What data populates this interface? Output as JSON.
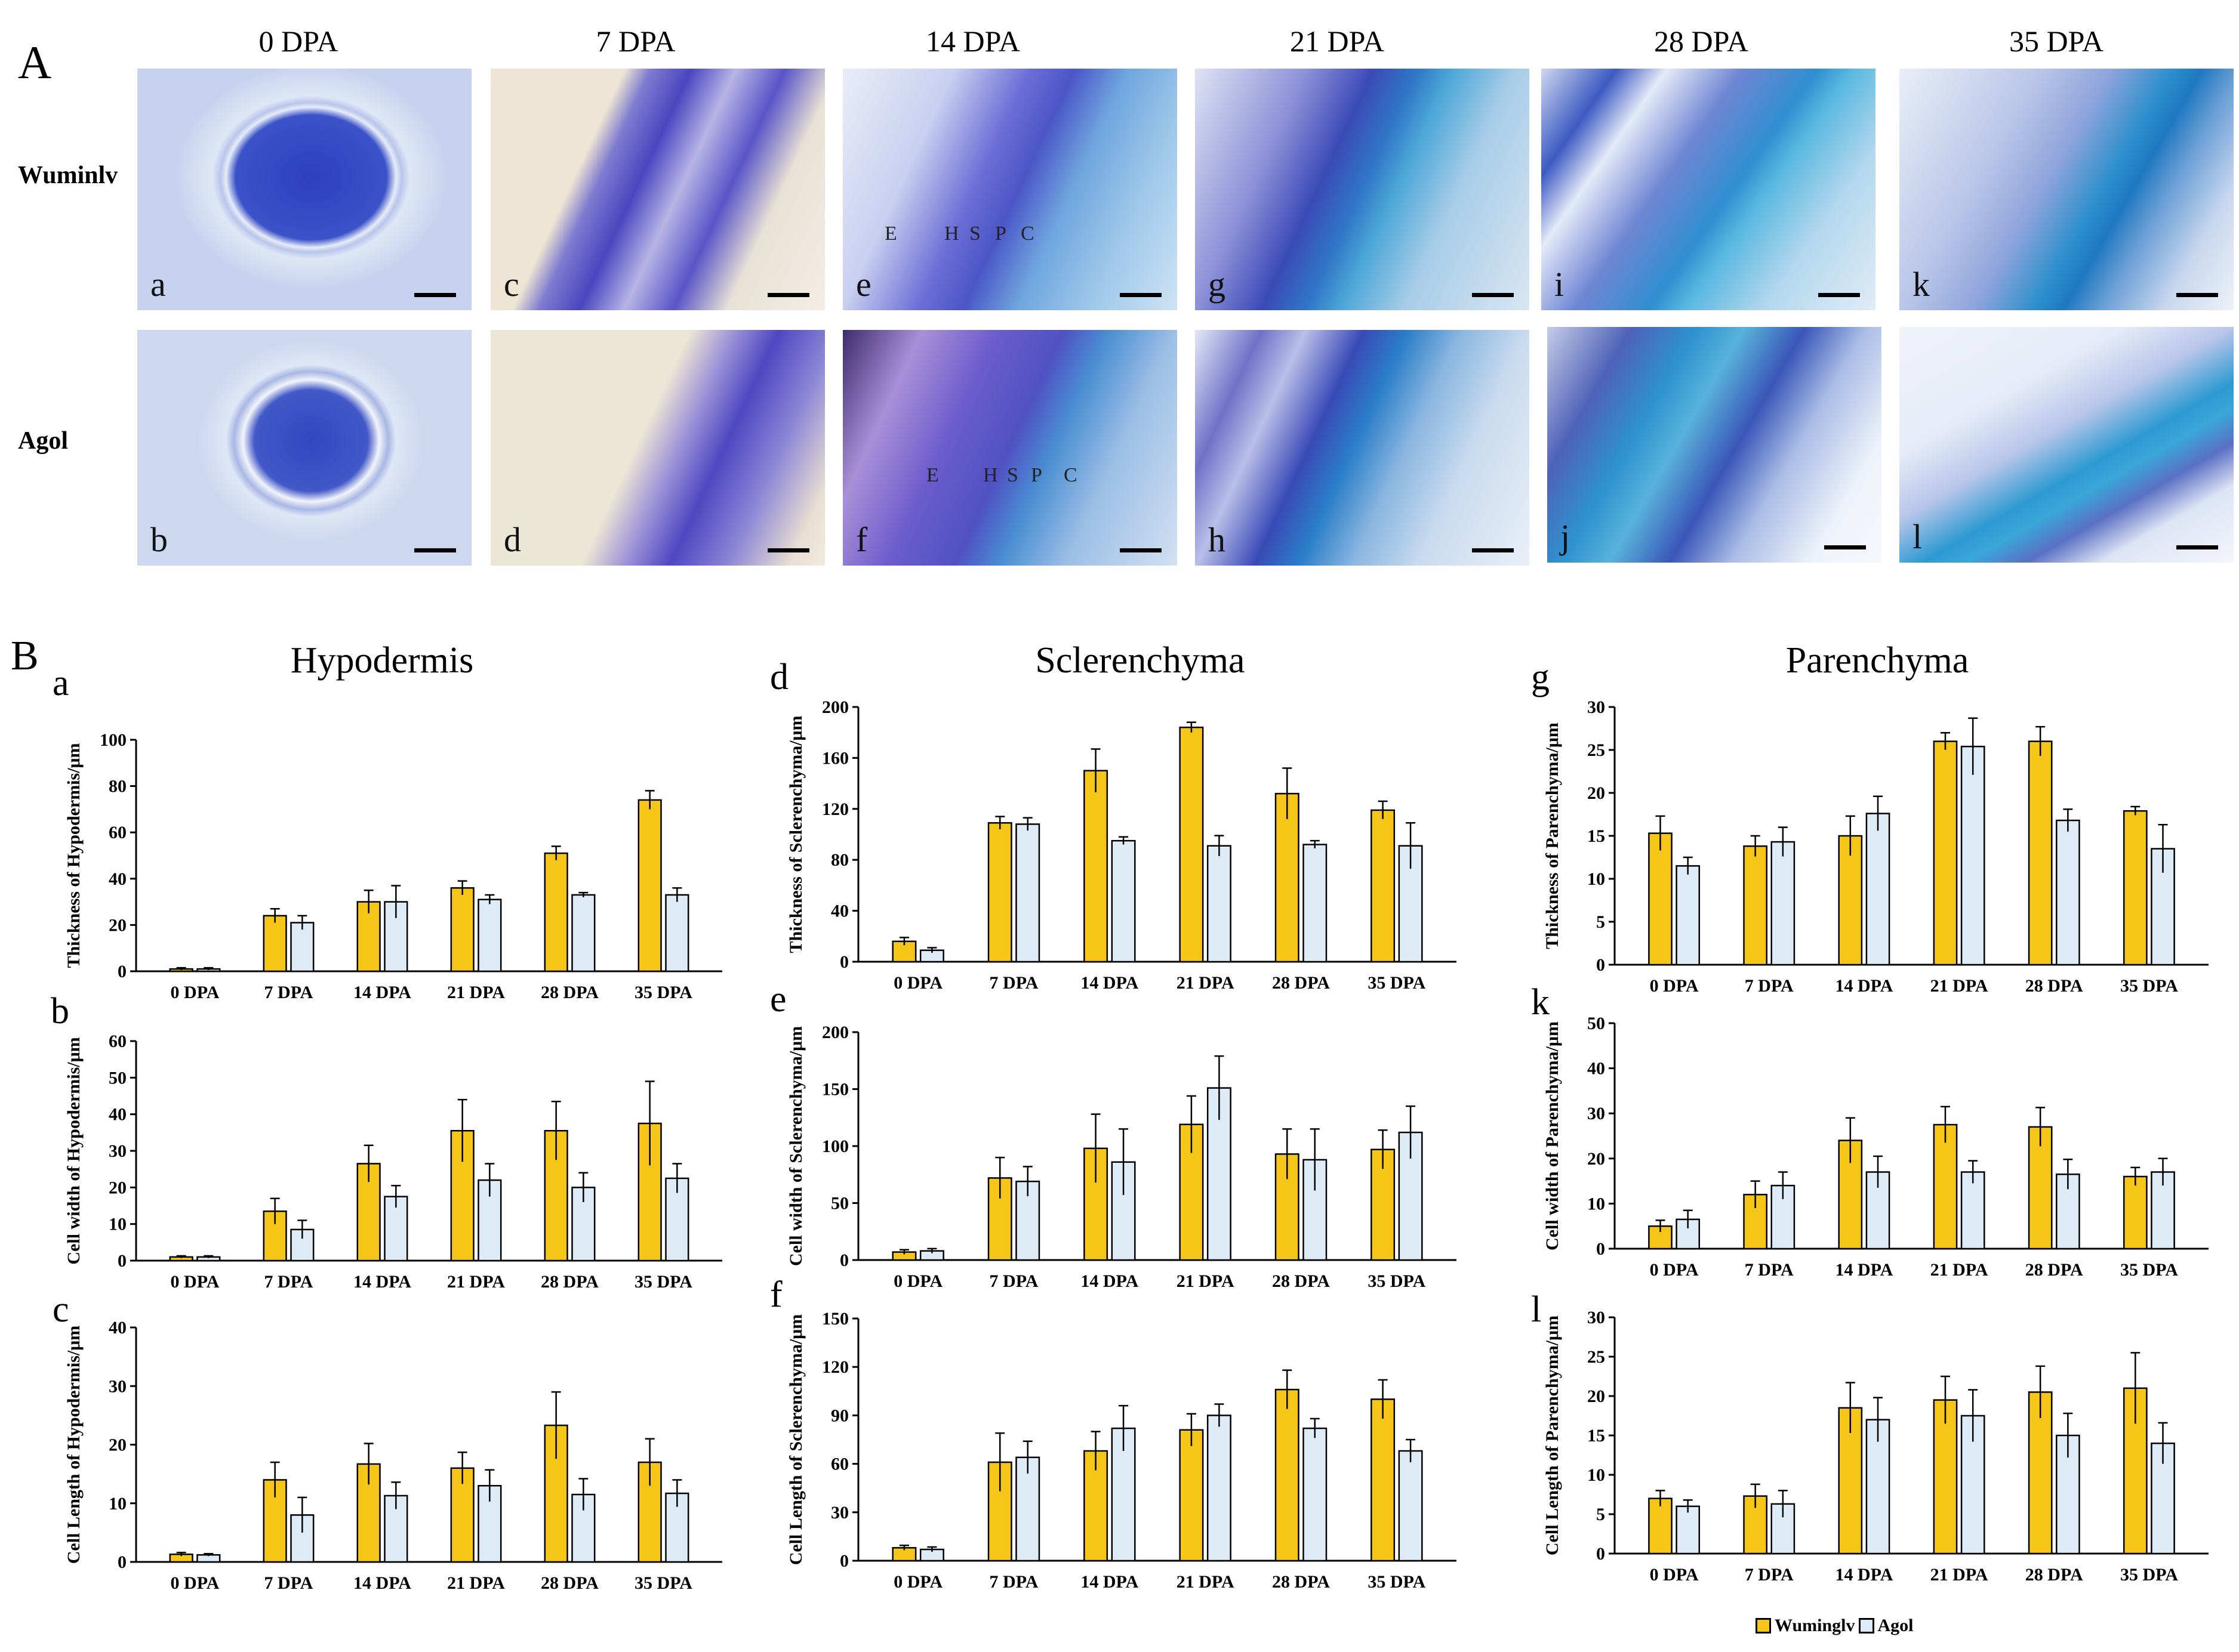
{
  "panel_A": {
    "letter": "A",
    "columns": [
      "0 DPA",
      "7 DPA",
      "14 DPA",
      "21 DPA",
      "28 DPA",
      "35 DPA"
    ],
    "rows": [
      "Wuminlv",
      "Agol"
    ],
    "sublabels": [
      [
        "a",
        "c",
        "e",
        "g",
        "i",
        "k"
      ],
      [
        "b",
        "d",
        "f",
        "h",
        "j",
        "l"
      ]
    ],
    "layer_labels": {
      "e": [
        "E",
        "H",
        "S",
        "P",
        "C"
      ],
      "f": [
        "E",
        "H",
        "S",
        "P",
        "C"
      ]
    }
  },
  "panel_B": {
    "letter": "B",
    "column_titles": [
      "Hypodermis",
      "Sclerenchyma",
      "Parenchyma"
    ]
  },
  "legend": {
    "series": [
      {
        "name": "Wuminglv",
        "color": "#F5C518"
      },
      {
        "name": "Agol",
        "color": "#DDEBF7"
      }
    ]
  },
  "colors": {
    "wuminglv": "#F5C518",
    "agol": "#DDEBF7",
    "stain_dark": "#2436a8",
    "stain_light": "#5fb0d9"
  },
  "chart_data": [
    {
      "id": "a",
      "type": "bar",
      "title": "Hypodermis",
      "ylabel": "Thickness of Hypodermis/μm",
      "ylim": [
        0,
        100
      ],
      "yticks": [
        0,
        20,
        40,
        60,
        80,
        100
      ],
      "categories": [
        "0 DPA",
        "7 DPA",
        "14 DPA",
        "21 DPA",
        "28 DPA",
        "35 DPA"
      ],
      "series": [
        {
          "name": "Wuminglv",
          "values": [
            1,
            24,
            30,
            36,
            51,
            74
          ],
          "errors": [
            0.5,
            3,
            5,
            3,
            3,
            4
          ]
        },
        {
          "name": "Agol",
          "values": [
            1,
            21,
            30,
            31,
            33,
            33
          ],
          "errors": [
            0.5,
            3,
            7,
            2,
            1,
            3
          ]
        }
      ]
    },
    {
      "id": "b",
      "type": "bar",
      "ylabel": "Cell width of Hypodermis/μm",
      "ylim": [
        0,
        60
      ],
      "yticks": [
        0,
        10,
        20,
        30,
        40,
        50,
        60
      ],
      "categories": [
        "0 DPA",
        "7 DPA",
        "14 DPA",
        "21 DPA",
        "28 DPA",
        "35 DPA"
      ],
      "series": [
        {
          "name": "Wuminglv",
          "values": [
            1,
            13.5,
            26.5,
            35.5,
            35.5,
            37.5
          ],
          "errors": [
            0.3,
            3.5,
            5,
            8.5,
            8,
            11.5
          ]
        },
        {
          "name": "Agol",
          "values": [
            1,
            8.5,
            17.5,
            22,
            20,
            22.5
          ],
          "errors": [
            0.3,
            2.5,
            3,
            4.5,
            4,
            4
          ]
        }
      ]
    },
    {
      "id": "c",
      "type": "bar",
      "ylabel": "Cell Length of Hypodermis/μm",
      "ylim": [
        0,
        40
      ],
      "yticks": [
        0,
        10,
        20,
        30,
        40
      ],
      "categories": [
        "0 DPA",
        "7 DPA",
        "14 DPA",
        "21 DPA",
        "28 DPA",
        "35 DPA"
      ],
      "series": [
        {
          "name": "Wuminglv",
          "values": [
            1.3,
            14,
            16.7,
            16,
            23.3,
            17
          ],
          "errors": [
            0.3,
            3,
            3.5,
            2.7,
            5.7,
            4
          ]
        },
        {
          "name": "Agol",
          "values": [
            1.2,
            8,
            11.3,
            13,
            11.5,
            11.7
          ],
          "errors": [
            0.2,
            3,
            2.3,
            2.7,
            2.7,
            2.3
          ]
        }
      ]
    },
    {
      "id": "d",
      "type": "bar",
      "title": "Sclerenchyma",
      "ylabel": "Thickness of Sclerenchyma/μm",
      "ylim": [
        0,
        200
      ],
      "yticks": [
        0,
        40,
        80,
        120,
        160,
        200
      ],
      "categories": [
        "0 DPA",
        "7 DPA",
        "14 DPA",
        "21 DPA",
        "28 DPA",
        "35 DPA"
      ],
      "series": [
        {
          "name": "Wuminglv",
          "values": [
            16,
            109,
            150,
            184,
            132,
            119
          ],
          "errors": [
            3,
            5,
            17,
            4,
            20,
            7
          ]
        },
        {
          "name": "Agol",
          "values": [
            9,
            108,
            95,
            91,
            92,
            91
          ],
          "errors": [
            2,
            5,
            3,
            8,
            3,
            18
          ]
        }
      ]
    },
    {
      "id": "e",
      "type": "bar",
      "ylabel": "Cell width of Sclerenchyma/μm",
      "ylim": [
        0,
        200
      ],
      "yticks": [
        0,
        50,
        100,
        150,
        200
      ],
      "categories": [
        "0 DPA",
        "7 DPA",
        "14 DPA",
        "21 DPA",
        "28 DPA",
        "35 DPA"
      ],
      "series": [
        {
          "name": "Wuminglv",
          "values": [
            7,
            72,
            98,
            119,
            93,
            97
          ],
          "errors": [
            2,
            18,
            30,
            25,
            22,
            17
          ]
        },
        {
          "name": "Agol",
          "values": [
            8,
            69,
            86,
            151,
            88,
            112
          ],
          "errors": [
            2,
            13,
            29,
            28,
            27,
            23
          ]
        }
      ]
    },
    {
      "id": "f",
      "type": "bar",
      "ylabel": "Cell Length of Sclerenchyma/μm",
      "ylim": [
        0,
        150
      ],
      "yticks": [
        0,
        30,
        60,
        90,
        120,
        150
      ],
      "categories": [
        "0 DPA",
        "7 DPA",
        "14 DPA",
        "21 DPA",
        "28 DPA",
        "35 DPA"
      ],
      "series": [
        {
          "name": "Wuminglv",
          "values": [
            8,
            61,
            68,
            81,
            106,
            100
          ],
          "errors": [
            1.5,
            18,
            12,
            10,
            12,
            12
          ]
        },
        {
          "name": "Agol",
          "values": [
            7,
            64,
            82,
            90,
            82,
            68
          ],
          "errors": [
            1.5,
            10,
            14,
            7,
            6,
            7
          ]
        }
      ]
    },
    {
      "id": "g",
      "type": "bar",
      "title": "Parenchyma",
      "ylabel": "Thickness of Parenchyma/μm",
      "ylim": [
        0,
        30
      ],
      "yticks": [
        0,
        5,
        10,
        15,
        20,
        25,
        30
      ],
      "categories": [
        "0 DPA",
        "7 DPA",
        "14 DPA",
        "21 DPA",
        "28 DPA",
        "35 DPA"
      ],
      "series": [
        {
          "name": "Wuminglv",
          "values": [
            15.3,
            13.8,
            15,
            26,
            26,
            17.9
          ],
          "errors": [
            2,
            1.2,
            2.3,
            1,
            1.7,
            0.5
          ]
        },
        {
          "name": "Agol",
          "values": [
            11.5,
            14.3,
            17.6,
            25.4,
            16.8,
            13.5
          ],
          "errors": [
            1,
            1.7,
            2,
            3.3,
            1.3,
            2.8
          ]
        }
      ]
    },
    {
      "id": "k",
      "type": "bar",
      "ylabel": "Cell width of Parenchyma/μm",
      "ylim": [
        0,
        50
      ],
      "yticks": [
        0,
        10,
        20,
        30,
        40,
        50
      ],
      "categories": [
        "0 DPA",
        "7 DPA",
        "14 DPA",
        "21 DPA",
        "28 DPA",
        "35 DPA"
      ],
      "series": [
        {
          "name": "Wuminglv",
          "values": [
            5,
            12,
            24,
            27.5,
            27,
            16
          ],
          "errors": [
            1.3,
            3,
            5,
            4,
            4.3,
            2
          ]
        },
        {
          "name": "Agol",
          "values": [
            6.5,
            14,
            17,
            17,
            16.5,
            17
          ],
          "errors": [
            2,
            3,
            3.5,
            2.5,
            3.3,
            3
          ]
        }
      ]
    },
    {
      "id": "l",
      "type": "bar",
      "ylabel": "Cell Length of Parenchyma/μm",
      "ylim": [
        0,
        30
      ],
      "yticks": [
        0,
        5,
        10,
        15,
        20,
        25,
        30
      ],
      "categories": [
        "0 DPA",
        "7 DPA",
        "14 DPA",
        "21 DPA",
        "28 DPA",
        "35 DPA"
      ],
      "series": [
        {
          "name": "Wuminglv",
          "values": [
            7,
            7.3,
            18.5,
            19.5,
            20.5,
            21
          ],
          "errors": [
            1,
            1.5,
            3.2,
            3,
            3.3,
            4.5
          ]
        },
        {
          "name": "Agol",
          "values": [
            6,
            6.3,
            17,
            17.5,
            15,
            14
          ],
          "errors": [
            0.8,
            1.7,
            2.8,
            3.3,
            2.8,
            2.6
          ]
        }
      ]
    }
  ]
}
